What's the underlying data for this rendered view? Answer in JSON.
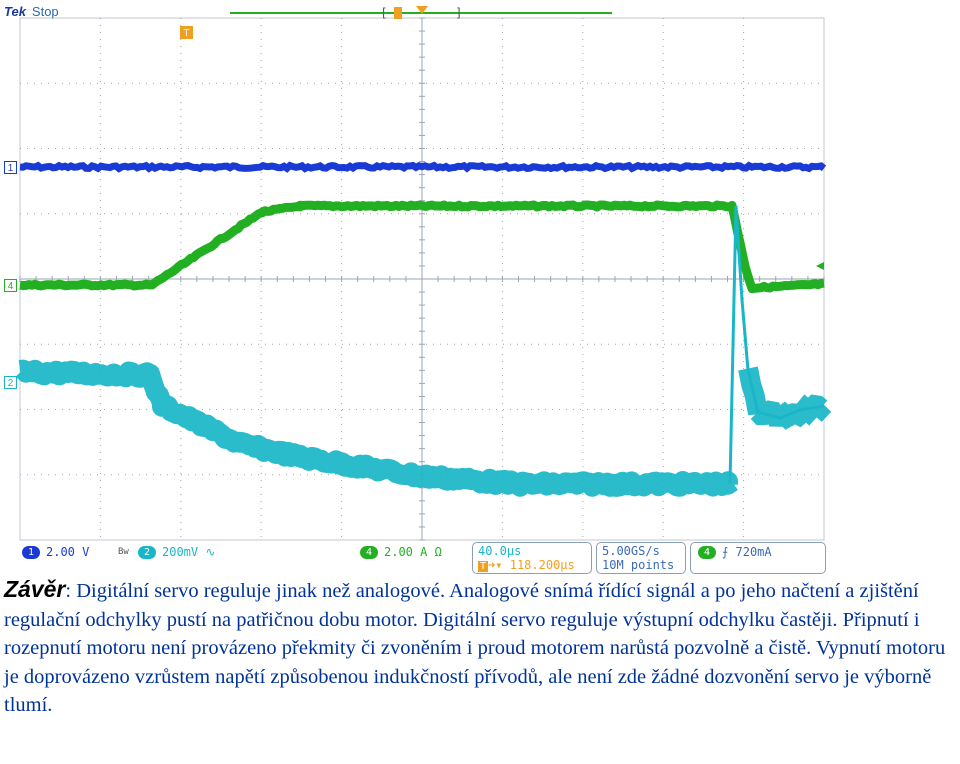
{
  "scope": {
    "brand": "Tek",
    "state": "Stop",
    "trigger_marker": "T",
    "channel_markers": [
      {
        "label": "1",
        "color": "#1a3ad6"
      },
      {
        "label": "4",
        "color": "#22b022"
      },
      {
        "label": "2",
        "color": "#19b6c8"
      }
    ],
    "status": {
      "ch1": {
        "label": "1",
        "value": "2.00 V",
        "color": "#1a3ad6"
      },
      "bw_symbol": "Bw",
      "ch2": {
        "label": "2",
        "value": "200mV",
        "coupling": "∿",
        "color": "#19b6c8"
      },
      "ch4": {
        "label": "4",
        "value": "2.00 A",
        "unit_symbol": "Ω",
        "color": "#22b022"
      },
      "timebase": "40.0µs",
      "trigger_pos": "118.200µs",
      "sample_rate": "5.00GS/s",
      "record_length": "10M points",
      "trig_src": {
        "label": "4",
        "color": "#22b022"
      },
      "trig_slope": "⨍",
      "trig_level": "720mA"
    }
  },
  "text": {
    "lead": "Závěr",
    "body": ": Digitální servo reguluje jinak než analogové. Analogové snímá řídící signál a po jeho načtení a zjištění regulační odchylky pustí na patřičnou dobu motor. Digitální servo reguluje výstupní odchylku častěji. Připnutí i rozepnutí motoru není provázeno překmity či zvoněním i proud motorem narůstá pozvolně a čistě. Vypnutí motoru je doprovázeno vzrůstem napětí způsobenou indukčností přívodů, ale není zde žádné dozvonění servo je výborně tlumí."
  },
  "colors": {
    "ch1": "#1a3ad6",
    "ch2": "#19b6c8",
    "ch4": "#22b022",
    "trigger": "#f0a020",
    "grid": "#9aa6b4",
    "text": "#003399"
  }
}
